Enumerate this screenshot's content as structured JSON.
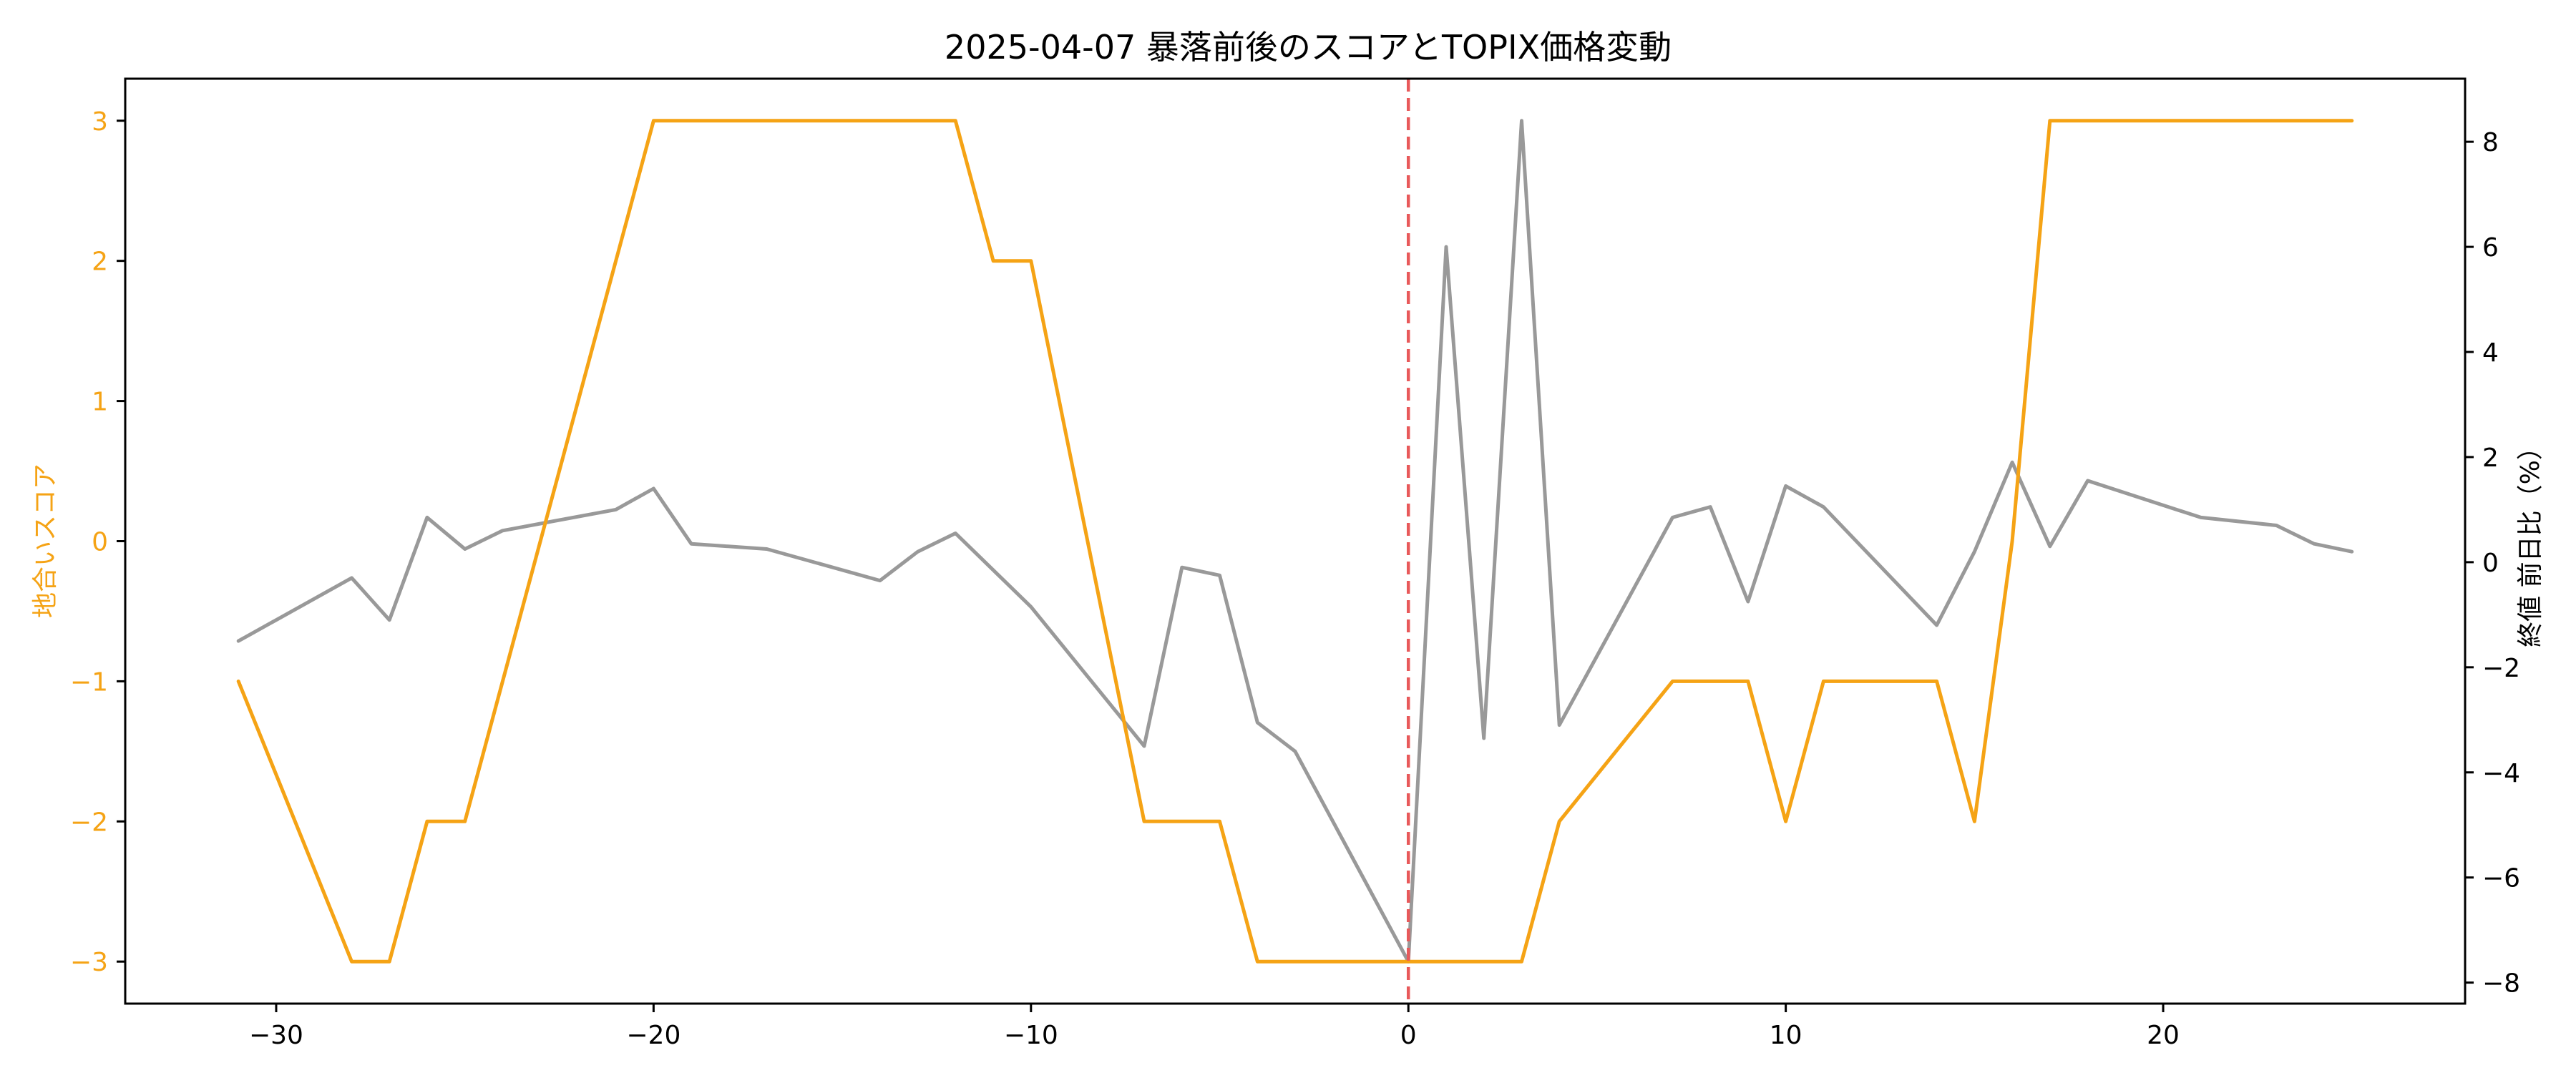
{
  "chart_data": {
    "type": "line",
    "title": "2025-04-07 暴落前後のスコアとTOPIX価格変動",
    "xlabel": "",
    "ylabel_left": "地合いスコア",
    "ylabel_right": "終値 前日比（%）",
    "xlim": [
      -34,
      28
    ],
    "ylim_left": [
      -3.3,
      3.3
    ],
    "ylim_right": [
      -8.4,
      9.2
    ],
    "xticks": [
      -30,
      -20,
      -10,
      0,
      10,
      20
    ],
    "yticks_left": [
      -3,
      -2,
      -1,
      0,
      1,
      2,
      3
    ],
    "yticks_right": [
      -8,
      -6,
      -4,
      -2,
      0,
      2,
      4,
      6,
      8
    ],
    "grid": false,
    "legend": "none",
    "event_line": {
      "x": 0,
      "color": "#e8595a",
      "style": "dashed"
    },
    "series": [
      {
        "axis": "left",
        "color": "#f5a315",
        "points": [
          [
            -31,
            -1
          ],
          [
            -28,
            -3
          ],
          [
            -27,
            -3
          ],
          [
            -26,
            -2
          ],
          [
            -25,
            -2
          ],
          [
            -20,
            3
          ],
          [
            -12,
            3
          ],
          [
            -11,
            2
          ],
          [
            -10,
            2
          ],
          [
            -7,
            -2
          ],
          [
            -5,
            -2
          ],
          [
            -4,
            -3
          ],
          [
            3,
            -3
          ],
          [
            4,
            -2
          ],
          [
            7,
            -1
          ],
          [
            9,
            -1
          ],
          [
            10,
            -2
          ],
          [
            11,
            -1
          ],
          [
            14,
            -1
          ],
          [
            15,
            -2
          ],
          [
            16,
            0
          ],
          [
            17,
            3
          ],
          [
            25,
            3
          ]
        ]
      },
      {
        "axis": "right",
        "color": "#999999",
        "points": [
          [
            -31,
            -1.5
          ],
          [
            -28,
            -0.3
          ],
          [
            -27,
            -1.1
          ],
          [
            -26,
            0.85
          ],
          [
            -25,
            0.25
          ],
          [
            -24,
            0.6
          ],
          [
            -21,
            1.0
          ],
          [
            -20,
            1.4
          ],
          [
            -19,
            0.35
          ],
          [
            -17,
            0.25
          ],
          [
            -14,
            -0.35
          ],
          [
            -13,
            0.2
          ],
          [
            -12,
            0.55
          ],
          [
            -10,
            -0.85
          ],
          [
            -7,
            -3.5
          ],
          [
            -6,
            -0.1
          ],
          [
            -5,
            -0.25
          ],
          [
            -4,
            -3.05
          ],
          [
            -3,
            -3.6
          ],
          [
            0,
            -7.6
          ],
          [
            1,
            6.0
          ],
          [
            2,
            -3.35
          ],
          [
            3,
            8.4
          ],
          [
            4,
            -3.1
          ],
          [
            7,
            0.85
          ],
          [
            8,
            1.05
          ],
          [
            9,
            -0.75
          ],
          [
            10,
            1.45
          ],
          [
            11,
            1.05
          ],
          [
            14,
            -1.2
          ],
          [
            15,
            0.2
          ],
          [
            16,
            1.9
          ],
          [
            17,
            0.3
          ],
          [
            18,
            1.55
          ],
          [
            21,
            0.85
          ],
          [
            23,
            0.7
          ],
          [
            24,
            0.35
          ],
          [
            25,
            0.2
          ]
        ]
      }
    ]
  }
}
